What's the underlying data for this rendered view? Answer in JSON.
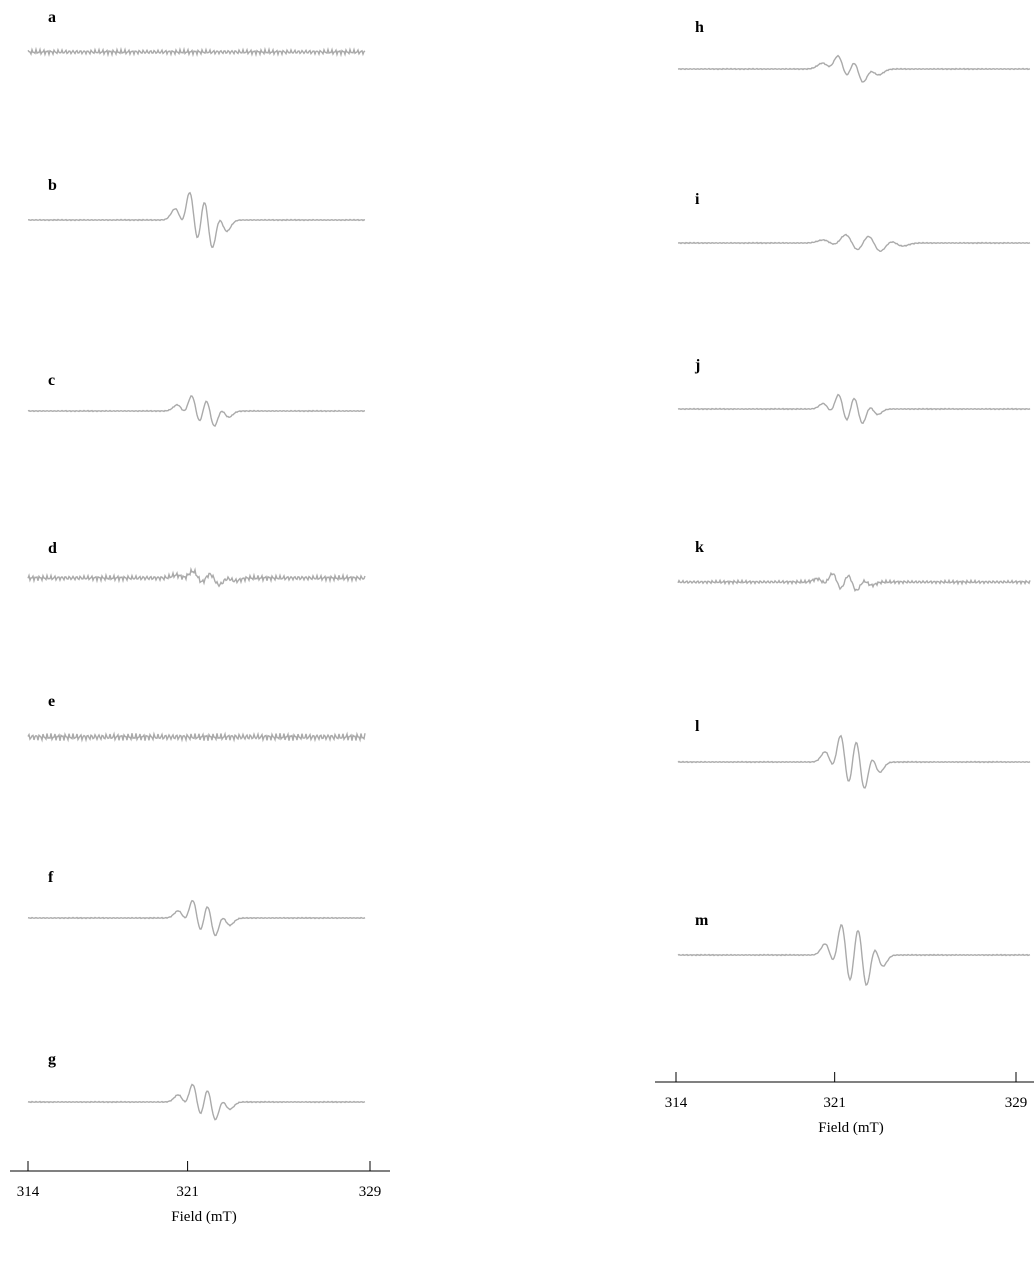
{
  "panels": [
    {
      "label": "a"
    },
    {
      "label": "b"
    },
    {
      "label": "c"
    },
    {
      "label": "d"
    },
    {
      "label": "e"
    },
    {
      "label": "f"
    },
    {
      "label": "g"
    },
    {
      "label": "h"
    },
    {
      "label": "i"
    },
    {
      "label": "j"
    },
    {
      "label": "k"
    },
    {
      "label": "l"
    },
    {
      "label": "m"
    }
  ],
  "axes": [
    {
      "xlim": [
        314,
        329
      ],
      "xticks": [
        314,
        321,
        329
      ],
      "label": "Field (mT)"
    },
    {
      "xlim": [
        314,
        329
      ],
      "xticks": [
        314,
        321,
        329
      ],
      "label": "Field (mT)"
    }
  ]
}
